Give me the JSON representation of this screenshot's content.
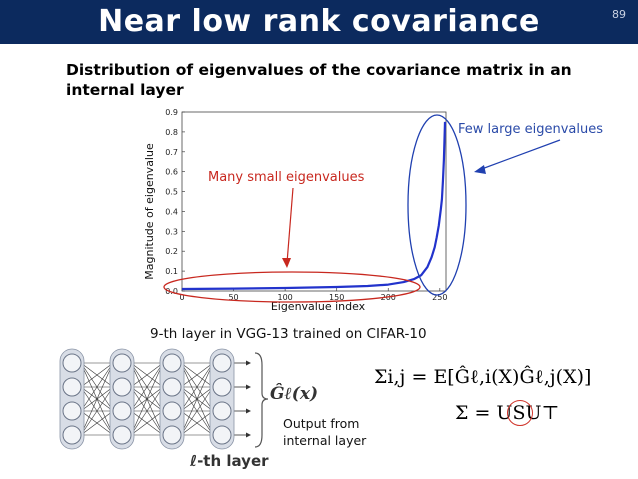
{
  "header": {
    "title": "Near low rank covariance",
    "slide_number": "89"
  },
  "subtitle": "Distribution of eigenvalues of the covariance matrix in an internal layer",
  "chart_data": {
    "type": "line",
    "xlabel": "Eigenvalue index",
    "ylabel": "Magnitude of eigenvalue",
    "xlim": [
      0,
      256
    ],
    "ylim": [
      0,
      0.9
    ],
    "x_ticks": [
      "0",
      "50",
      "100",
      "150",
      "200",
      "250"
    ],
    "y_ticks": [
      "0.0",
      "0.1",
      "0.2",
      "0.3",
      "0.4",
      "0.5",
      "0.6",
      "0.7",
      "0.8",
      "0.9"
    ],
    "line_color": "#2233cc",
    "x": [
      0,
      50,
      100,
      150,
      180,
      200,
      215,
      225,
      232,
      238,
      242,
      245,
      247,
      249,
      250,
      251,
      252,
      253,
      254,
      255
    ],
    "y": [
      0.01,
      0.012,
      0.015,
      0.02,
      0.025,
      0.032,
      0.045,
      0.06,
      0.08,
      0.12,
      0.17,
      0.22,
      0.27,
      0.33,
      0.37,
      0.41,
      0.46,
      0.55,
      0.66,
      0.85
    ],
    "annotations": {
      "small": "Many small eigenvalues",
      "large": "Few large eigenvalues"
    }
  },
  "caption": "9-th layer in VGG-13 trained on CIFAR-10",
  "network": {
    "g_label": "Ĝℓ(x)",
    "layer_label": "ℓ-th layer",
    "output_label": "Output from internal layer"
  },
  "equations": {
    "eq1": "Σi,j = E[Ĝℓ,i(X)Ĝℓ,j(X)]",
    "eq2": "Σ = USU⊤"
  },
  "colors": {
    "header_bg": "#0c2a5e",
    "red": "#c8281f",
    "blue": "#2a4aa8"
  }
}
